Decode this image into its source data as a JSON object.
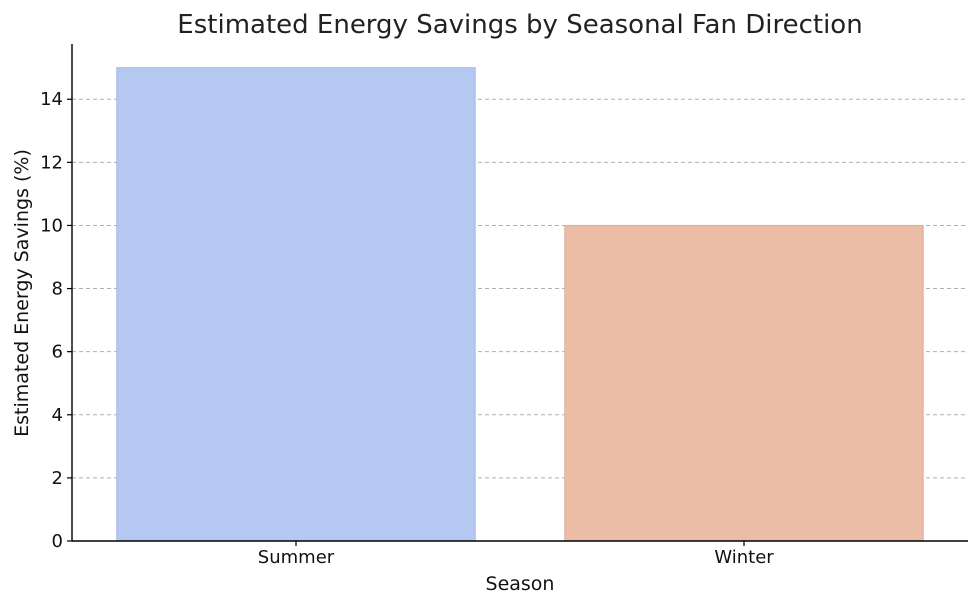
{
  "chart_data": {
    "type": "bar",
    "title": "Estimated Energy Savings by Seasonal Fan Direction",
    "xlabel": "Season",
    "ylabel": "Estimated Energy Savings (%)",
    "categories": [
      "Summer",
      "Winter"
    ],
    "values": [
      15,
      10
    ],
    "colors": [
      "#b4c8f2",
      "#ebbca6"
    ],
    "bar_border_colors": [
      "#a4b8e2",
      "#dcae98"
    ],
    "ylim": [
      0,
      15.75
    ],
    "yticks": [
      0,
      2,
      4,
      6,
      8,
      10,
      12,
      14
    ],
    "grid": "y-dashed",
    "legend": "none"
  }
}
